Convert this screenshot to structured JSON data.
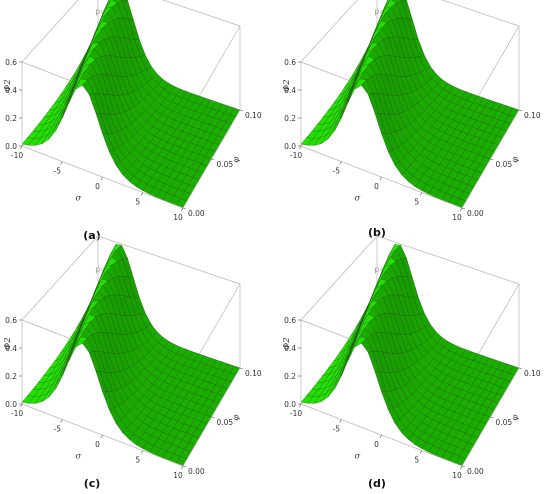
{
  "chart_data": [
    {
      "type": "surface",
      "title": "p=0.48",
      "caption": "(a)",
      "p": 0.48,
      "xlabel": "σ",
      "ylabel": "φ",
      "zlabel": "Φ2",
      "xlim": [
        -10,
        10
      ],
      "ylim": [
        0.0,
        0.1
      ],
      "zlim": [
        0.0,
        0.6
      ],
      "xticks": [
        "-10",
        "-5",
        "0",
        "5",
        "10"
      ],
      "yticks": [
        "0.00",
        "0.05",
        "0.10"
      ],
      "zticks": [
        "0.0",
        "0.2",
        "0.4",
        "0.6"
      ],
      "surface_color": "#22e000",
      "peak_value": 0.6,
      "peak_sigma_at_phi0": -2.5,
      "peak_sigma_at_phi_max": -7,
      "width": 2.9
    },
    {
      "type": "surface",
      "title": "p=0.68",
      "caption": "(b)",
      "p": 0.68,
      "xlabel": "σ",
      "ylabel": "φ",
      "zlabel": "Φ2",
      "xlim": [
        -10,
        10
      ],
      "ylim": [
        0.0,
        0.1
      ],
      "zlim": [
        0.0,
        0.6
      ],
      "xticks": [
        "-10",
        "-5",
        "0",
        "5",
        "10"
      ],
      "yticks": [
        "0.00",
        "0.05",
        "0.10"
      ],
      "zticks": [
        "0.0",
        "0.2",
        "0.4",
        "0.6"
      ],
      "surface_color": "#22e000",
      "peak_value": 0.6,
      "peak_sigma_at_phi0": -2.5,
      "peak_sigma_at_phi_max": -7,
      "width": 2.9
    },
    {
      "type": "surface",
      "title": "p=0.88",
      "caption": "(c)",
      "p": 0.88,
      "xlabel": "σ",
      "ylabel": "φ",
      "zlabel": "Φ2",
      "xlim": [
        -10,
        10
      ],
      "ylim": [
        0.0,
        0.1
      ],
      "zlim": [
        0.0,
        0.6
      ],
      "xticks": [
        "-10",
        "-5",
        "0",
        "5",
        "10"
      ],
      "yticks": [
        "0.00",
        "0.05",
        "0.10"
      ],
      "zticks": [
        "0.0",
        "0.2",
        "0.4",
        "0.6"
      ],
      "surface_color": "#22e000",
      "peak_value": 0.6,
      "peak_sigma_at_phi0": -2.5,
      "peak_sigma_at_phi_max": -7,
      "width": 2.9
    },
    {
      "type": "surface",
      "title": "p=1.00",
      "caption": "(d)",
      "p": 1.0,
      "xlabel": "σ",
      "ylabel": "φ",
      "zlabel": "Φ2",
      "xlim": [
        -10,
        10
      ],
      "ylim": [
        0.0,
        0.1
      ],
      "zlim": [
        0.0,
        0.6
      ],
      "xticks": [
        "-10",
        "-5",
        "0",
        "5",
        "10"
      ],
      "yticks": [
        "0.00",
        "0.05",
        "0.10"
      ],
      "zticks": [
        "0.0",
        "0.2",
        "0.4",
        "0.6"
      ],
      "surface_color": "#22e000",
      "peak_value": 0.6,
      "peak_sigma_at_phi0": -2.5,
      "peak_sigma_at_phi_max": -7,
      "width": 2.9
    }
  ]
}
